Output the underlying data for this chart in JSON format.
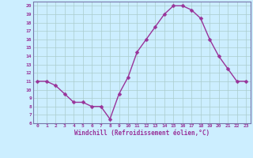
{
  "x": [
    0,
    1,
    2,
    3,
    4,
    5,
    6,
    7,
    8,
    9,
    10,
    11,
    12,
    13,
    14,
    15,
    16,
    17,
    18,
    19,
    20,
    21,
    22,
    23
  ],
  "y": [
    11,
    11,
    10.5,
    9.5,
    8.5,
    8.5,
    8.0,
    8.0,
    6.5,
    9.5,
    11.5,
    14.5,
    16.0,
    17.5,
    19.0,
    20.0,
    20.0,
    19.5,
    18.5,
    16.0,
    14.0,
    12.5,
    11.0,
    11.0
  ],
  "line_color": "#993399",
  "marker_color": "#993399",
  "bg_color": "#cceeff",
  "grid_color": "#aacccc",
  "spine_color": "#7777aa",
  "xlabel": "Windchill (Refroidissement éolien,°C)",
  "xlabel_color": "#993399",
  "tick_color": "#993399",
  "xlim": [
    -0.5,
    23.5
  ],
  "ylim": [
    6,
    20.5
  ],
  "yticks": [
    6,
    7,
    8,
    9,
    10,
    11,
    12,
    13,
    14,
    15,
    16,
    17,
    18,
    19,
    20
  ],
  "xticks": [
    0,
    1,
    2,
    3,
    4,
    5,
    6,
    7,
    8,
    9,
    10,
    11,
    12,
    13,
    14,
    15,
    16,
    17,
    18,
    19,
    20,
    21,
    22,
    23
  ],
  "xtick_labels": [
    "0",
    "1",
    "2",
    "3",
    "4",
    "5",
    "6",
    "7",
    "8",
    "9",
    "10",
    "11",
    "12",
    "13",
    "14",
    "15",
    "16",
    "17",
    "18",
    "19",
    "20",
    "21",
    "22",
    "23"
  ],
  "ytick_labels": [
    "6",
    "7",
    "8",
    "9",
    "10",
    "11",
    "12",
    "13",
    "14",
    "15",
    "16",
    "17",
    "18",
    "19",
    "20"
  ],
  "marker_size": 2.5,
  "line_width": 1.0
}
